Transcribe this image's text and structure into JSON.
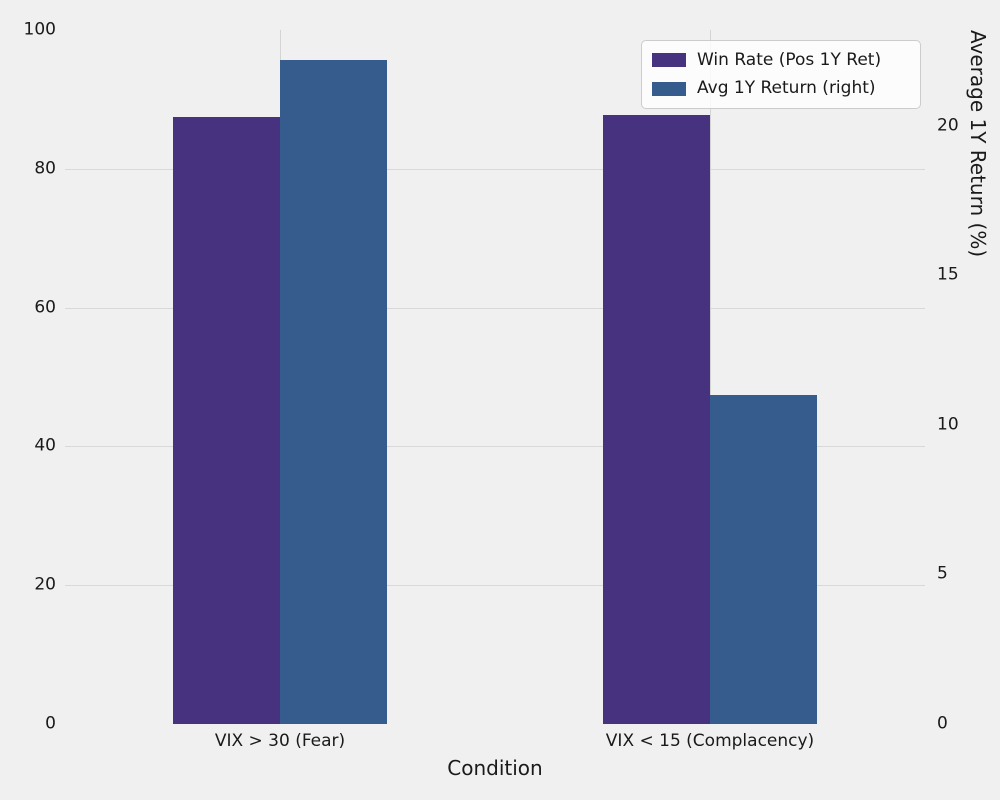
{
  "chart_data": {
    "type": "bar",
    "categories": [
      "VIX > 30 (Fear)",
      "VIX < 15 (Complacency)"
    ],
    "series": [
      {
        "name": "Win Rate (Pos 1Y Ret)",
        "axis": "left",
        "color": "#46327e",
        "values": [
          87.5,
          87.8
        ]
      },
      {
        "name": "Avg 1Y Return (right)",
        "axis": "right",
        "color": "#365c8d",
        "values": [
          22.2,
          11.0
        ]
      }
    ],
    "title": "",
    "xlabel": "Condition",
    "ylabel_left": "",
    "ylabel_right": "Average 1Y Return (%)",
    "left_axis": {
      "min": 0,
      "max": 100,
      "ticks": [
        0,
        20,
        40,
        60,
        80,
        100
      ],
      "grid_ticks": [
        20,
        40,
        60,
        80
      ]
    },
    "right_axis": {
      "min": 0,
      "max": 23.2,
      "ticks": [
        0,
        5,
        10,
        15,
        20
      ]
    },
    "grid": true,
    "legend_position": "upper right",
    "background_color": "#f0f0f0",
    "gridline_color": "#d8d8d8",
    "text_color": "#1a1a1a"
  }
}
